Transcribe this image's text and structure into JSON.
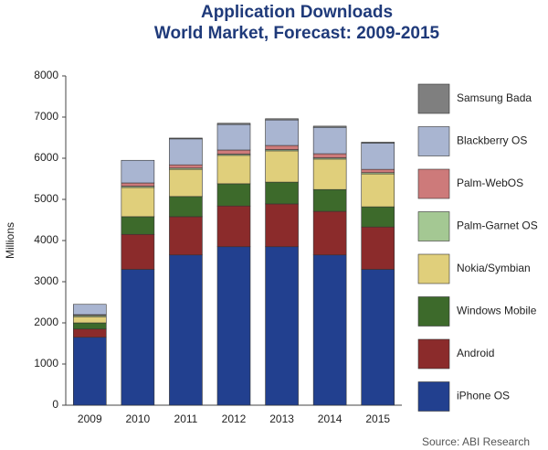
{
  "chart_data": {
    "type": "stacked-bar",
    "title": "Application Downloads",
    "subtitle": "World Market, Forecast: 2009-2015",
    "y_label": "Millions",
    "source": "Source: ABI Research",
    "categories": [
      "2009",
      "2010",
      "2011",
      "2012",
      "2013",
      "2014",
      "2015"
    ],
    "series": [
      {
        "name": "iPhone OS",
        "color": "#22408f",
        "values": [
          1650,
          3300,
          3650,
          3850,
          3850,
          3650,
          3300
        ]
      },
      {
        "name": "Android",
        "color": "#8b2b2b",
        "values": [
          200,
          850,
          930,
          990,
          1040,
          1060,
          1030
        ]
      },
      {
        "name": "Windows Mobile",
        "color": "#3d6a2b",
        "values": [
          150,
          430,
          490,
          540,
          530,
          530,
          490
        ]
      },
      {
        "name": "Nokia/Symbian",
        "color": "#e0cf7b",
        "values": [
          150,
          710,
          660,
          690,
          760,
          740,
          800
        ]
      },
      {
        "name": "Palm-Garnet OS",
        "color": "#a4c893",
        "values": [
          30,
          30,
          30,
          30,
          30,
          30,
          30
        ]
      },
      {
        "name": "Palm-WebOS",
        "color": "#cd7a7a",
        "values": [
          20,
          80,
          80,
          100,
          100,
          100,
          80
        ]
      },
      {
        "name": "Blackberry OS",
        "color": "#a9b5d1",
        "values": [
          250,
          550,
          630,
          620,
          620,
          640,
          640
        ]
      },
      {
        "name": "Samsung Bada",
        "color": "#7f7f7f",
        "values": [
          0,
          0,
          20,
          30,
          30,
          30,
          20
        ]
      }
    ],
    "ylim": [
      0,
      8000
    ],
    "yticks": [
      0,
      1000,
      2000,
      3000,
      4000,
      5000,
      6000,
      7000,
      8000
    ]
  }
}
